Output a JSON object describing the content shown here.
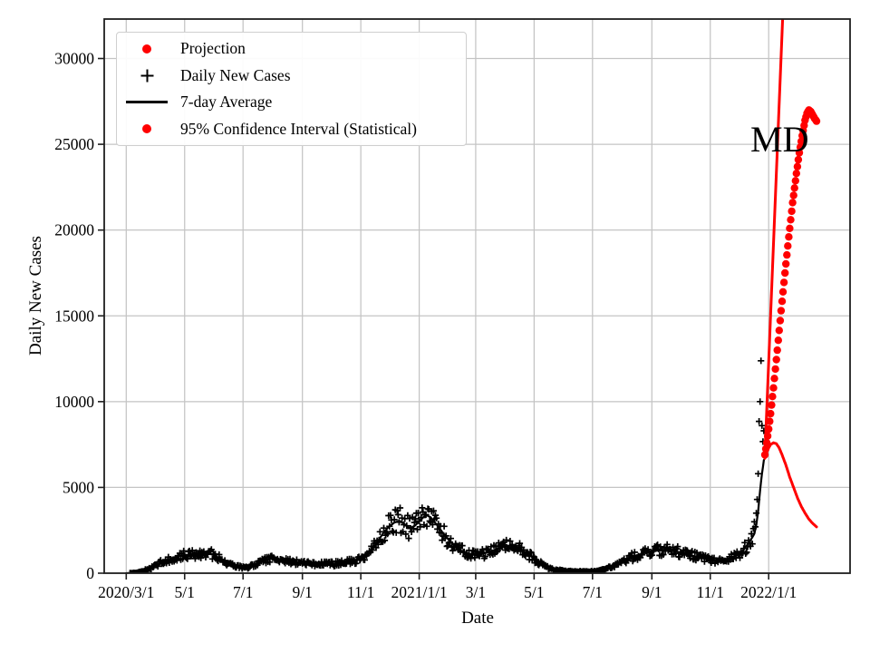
{
  "chart_data": {
    "type": "line",
    "title": "",
    "xlabel": "Date",
    "ylabel": "Daily New Cases",
    "annotation": {
      "text": "MD"
    },
    "grid": true,
    "legend_position": "upper left",
    "colors": {
      "projection": "#ff0000",
      "confidence_interval": "#ff0000",
      "daily_cases": "#000000",
      "average_line": "#000000",
      "grid": "#c4c4c4",
      "spine": "#1f1f1f"
    },
    "x_axis": {
      "start_date": "2020/3/1",
      "xlim_days": [
        -23,
        756
      ],
      "ticks": [
        {
          "label": "2020/3/1",
          "day": 0
        },
        {
          "label": "5/1",
          "day": 61
        },
        {
          "label": "7/1",
          "day": 122
        },
        {
          "label": "9/1",
          "day": 184
        },
        {
          "label": "11/1",
          "day": 245
        },
        {
          "label": "2021/1/1",
          "day": 306
        },
        {
          "label": "3/1",
          "day": 365
        },
        {
          "label": "5/1",
          "day": 426
        },
        {
          "label": "7/1",
          "day": 487
        },
        {
          "label": "9/1",
          "day": 549
        },
        {
          "label": "11/1",
          "day": 610
        },
        {
          "label": "2022/1/1",
          "day": 671
        }
      ]
    },
    "y_axis": {
      "ylim": [
        0,
        32300
      ],
      "ticks": [
        {
          "v": 0,
          "label": "0"
        },
        {
          "v": 5000,
          "label": "5000"
        },
        {
          "v": 10000,
          "label": "10000"
        },
        {
          "v": 15000,
          "label": "15000"
        },
        {
          "v": 20000,
          "label": "20000"
        },
        {
          "v": 25000,
          "label": "25000"
        },
        {
          "v": 30000,
          "label": "30000"
        }
      ]
    },
    "legend": [
      {
        "label": "Projection",
        "marker": "red-dot"
      },
      {
        "label": "Daily New Cases",
        "marker": "black-plus"
      },
      {
        "label": "7-day Average",
        "marker": "black-line"
      },
      {
        "label": "95% Confidence Interval (Statistical)",
        "marker": "red-dot"
      }
    ],
    "series": {
      "avg_7day": {
        "name": "7-day Average",
        "style": "solid-black-line",
        "anchors_day_value": [
          [
            0,
            0
          ],
          [
            6,
            10
          ],
          [
            12,
            40
          ],
          [
            18,
            120
          ],
          [
            24,
            260
          ],
          [
            30,
            420
          ],
          [
            36,
            600
          ],
          [
            42,
            750
          ],
          [
            48,
            880
          ],
          [
            54,
            1000
          ],
          [
            61,
            1060
          ],
          [
            68,
            1080
          ],
          [
            74,
            1150
          ],
          [
            80,
            1210
          ],
          [
            86,
            1150
          ],
          [
            92,
            1050
          ],
          [
            98,
            850
          ],
          [
            104,
            640
          ],
          [
            110,
            480
          ],
          [
            116,
            390
          ],
          [
            122,
            330
          ],
          [
            128,
            360
          ],
          [
            134,
            480
          ],
          [
            140,
            620
          ],
          [
            146,
            760
          ],
          [
            152,
            870
          ],
          [
            158,
            830
          ],
          [
            165,
            740
          ],
          [
            172,
            660
          ],
          [
            184,
            610
          ],
          [
            192,
            580
          ],
          [
            200,
            545
          ],
          [
            208,
            530
          ],
          [
            216,
            545
          ],
          [
            224,
            590
          ],
          [
            232,
            660
          ],
          [
            240,
            740
          ],
          [
            245,
            820
          ],
          [
            250,
            1000
          ],
          [
            256,
            1350
          ],
          [
            262,
            1800
          ],
          [
            268,
            2300
          ],
          [
            274,
            2700
          ],
          [
            280,
            2950
          ],
          [
            285,
            3050
          ],
          [
            290,
            2900
          ],
          [
            295,
            2650
          ],
          [
            300,
            2700
          ],
          [
            305,
            2950
          ],
          [
            310,
            3250
          ],
          [
            314,
            3380
          ],
          [
            318,
            3250
          ],
          [
            324,
            2850
          ],
          [
            330,
            2400
          ],
          [
            336,
            2000
          ],
          [
            343,
            1600
          ],
          [
            350,
            1300
          ],
          [
            358,
            1130
          ],
          [
            365,
            1050
          ],
          [
            372,
            1130
          ],
          [
            380,
            1270
          ],
          [
            388,
            1420
          ],
          [
            395,
            1540
          ],
          [
            401,
            1600
          ],
          [
            407,
            1540
          ],
          [
            413,
            1380
          ],
          [
            419,
            1130
          ],
          [
            426,
            860
          ],
          [
            433,
            560
          ],
          [
            440,
            330
          ],
          [
            448,
            200
          ],
          [
            456,
            140
          ],
          [
            464,
            110
          ],
          [
            472,
            95
          ],
          [
            480,
            92
          ],
          [
            487,
            100
          ],
          [
            494,
            150
          ],
          [
            500,
            230
          ],
          [
            507,
            380
          ],
          [
            514,
            560
          ],
          [
            521,
            760
          ],
          [
            528,
            920
          ],
          [
            535,
            1070
          ],
          [
            542,
            1190
          ],
          [
            549,
            1260
          ],
          [
            556,
            1330
          ],
          [
            562,
            1360
          ],
          [
            568,
            1330
          ],
          [
            575,
            1260
          ],
          [
            582,
            1160
          ],
          [
            589,
            1060
          ],
          [
            596,
            960
          ],
          [
            603,
            880
          ],
          [
            610,
            800
          ],
          [
            616,
            755
          ],
          [
            622,
            755
          ],
          [
            628,
            820
          ],
          [
            634,
            950
          ],
          [
            640,
            1120
          ],
          [
            645,
            1380
          ],
          [
            650,
            1750
          ],
          [
            654,
            2100
          ],
          [
            656,
            2300
          ],
          [
            658,
            2800
          ],
          [
            660,
            3600
          ],
          [
            662,
            4800
          ],
          [
            664,
            5800
          ],
          [
            666,
            6600
          ]
        ]
      },
      "daily_plus": {
        "name": "Daily New Cases",
        "style": "black-plus-markers",
        "from_day": 4,
        "to_day": 666,
        "noise_frac": 0.26,
        "overrides": {
          "655": 2600,
          "656": 3000,
          "657": 2700,
          "658": 3500,
          "659": 4300,
          "660": 5800,
          "661": 8850,
          "662": 10000,
          "663": 12380,
          "664": 8600,
          "665": 7670,
          "666": 8300
        }
      },
      "projection_dots": {
        "name": "Projection",
        "style": "red-dots",
        "from_day": 667,
        "to_day": 721,
        "anchors_day_value": [
          [
            667,
            6900
          ],
          [
            669,
            7600
          ],
          [
            671,
            8400
          ],
          [
            673,
            9300
          ],
          [
            676,
            10800
          ],
          [
            680,
            13000
          ],
          [
            684,
            15300
          ],
          [
            688,
            17500
          ],
          [
            692,
            19600
          ],
          [
            696,
            21600
          ],
          [
            700,
            23300
          ],
          [
            703,
            24500
          ],
          [
            706,
            25500
          ],
          [
            709,
            26400
          ],
          [
            711,
            26800
          ],
          [
            713,
            27000
          ],
          [
            715,
            26900
          ],
          [
            717,
            26700
          ],
          [
            719,
            26500
          ],
          [
            721,
            26350
          ]
        ]
      },
      "ci_upper": {
        "name": "95% Confidence Interval (Statistical) upper",
        "style": "red-line",
        "anchors_day_value": [
          [
            667,
            6800
          ],
          [
            686,
            32900
          ]
        ]
      },
      "ci_lower": {
        "name": "95% Confidence Interval (Statistical) lower",
        "style": "red-line",
        "anchors_day_value": [
          [
            667,
            6700
          ],
          [
            670,
            7200
          ],
          [
            673,
            7500
          ],
          [
            676,
            7600
          ],
          [
            679,
            7550
          ],
          [
            682,
            7300
          ],
          [
            685,
            6900
          ],
          [
            689,
            6300
          ],
          [
            693,
            5600
          ],
          [
            697,
            5000
          ],
          [
            701,
            4400
          ],
          [
            705,
            3900
          ],
          [
            709,
            3500
          ],
          [
            713,
            3150
          ],
          [
            717,
            2900
          ],
          [
            721,
            2700
          ]
        ]
      }
    }
  }
}
